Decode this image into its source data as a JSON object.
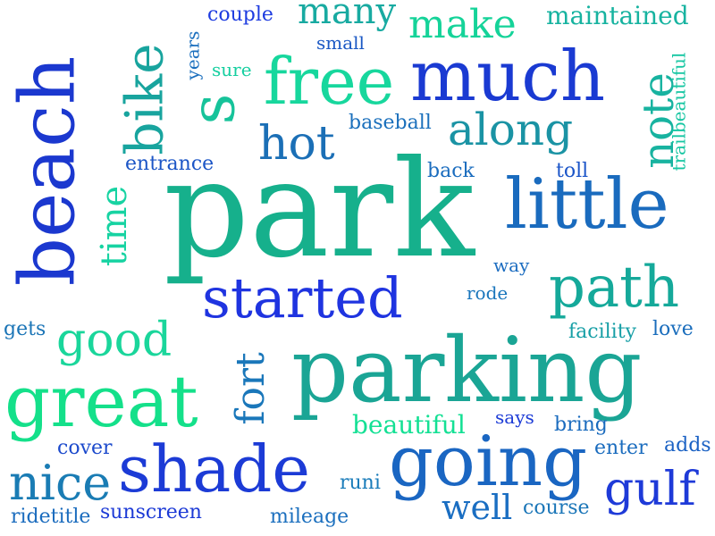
{
  "words": [
    {
      "text": "park",
      "color": "#16b08c"
    },
    {
      "text": "parking",
      "color": "#1aa595"
    },
    {
      "text": "beach",
      "color": "#1b38cf"
    },
    {
      "text": "going",
      "color": "#1a66c2"
    },
    {
      "text": "shade",
      "color": "#1c3bd6"
    },
    {
      "text": "great",
      "color": "#14e08a"
    },
    {
      "text": "little",
      "color": "#1a6bbe"
    },
    {
      "text": "much",
      "color": "#1a3ad2"
    },
    {
      "text": "free",
      "color": "#17d79d"
    },
    {
      "text": "started",
      "color": "#1f34e0"
    },
    {
      "text": "path",
      "color": "#15a99a"
    },
    {
      "text": "s",
      "color": "#16c39a"
    },
    {
      "text": "bike",
      "color": "#18a49e"
    },
    {
      "text": "good",
      "color": "#1ad69b"
    },
    {
      "text": "nice",
      "color": "#1a7cb4"
    },
    {
      "text": "gulf",
      "color": "#1e3ad8"
    },
    {
      "text": "along",
      "color": "#1a93a4"
    },
    {
      "text": "hot",
      "color": "#1b6fb6"
    },
    {
      "text": "note",
      "color": "#18b3a0"
    },
    {
      "text": "make",
      "color": "#15d399"
    },
    {
      "text": "fort",
      "color": "#1a77ba"
    },
    {
      "text": "time",
      "color": "#17d3a2"
    },
    {
      "text": "many",
      "color": "#18aaa1"
    },
    {
      "text": "well",
      "color": "#1a6ec2"
    },
    {
      "text": "maintained",
      "color": "#17b3a0"
    },
    {
      "text": "beautiful",
      "color": "#14e094"
    },
    {
      "text": "baseball",
      "color": "#1b70bc"
    },
    {
      "text": "entrance",
      "color": "#1b55c6"
    },
    {
      "text": "couple",
      "color": "#1e3ce0"
    },
    {
      "text": "years",
      "color": "#1b6fbe"
    },
    {
      "text": "small",
      "color": "#1b58c4"
    },
    {
      "text": "sure",
      "color": "#16cfa0"
    },
    {
      "text": "trailbeautiful",
      "color": "#16c6a2"
    },
    {
      "text": "back",
      "color": "#1a6cbe"
    },
    {
      "text": "toll",
      "color": "#1b55c8"
    },
    {
      "text": "way",
      "color": "#1b6cc0"
    },
    {
      "text": "rode",
      "color": "#1a76bc"
    },
    {
      "text": "facility",
      "color": "#179fa6"
    },
    {
      "text": "love",
      "color": "#1a6dbc"
    },
    {
      "text": "gets",
      "color": "#1a74b6"
    },
    {
      "text": "says",
      "color": "#1c3bd6"
    },
    {
      "text": "bring",
      "color": "#1a6bbe"
    },
    {
      "text": "cover",
      "color": "#1c4acc"
    },
    {
      "text": "enter",
      "color": "#1a6cbe"
    },
    {
      "text": "adds",
      "color": "#1b62c4"
    },
    {
      "text": "runi",
      "color": "#1a7cba"
    },
    {
      "text": "ridetitle",
      "color": "#1b6cbe"
    },
    {
      "text": "sunscreen",
      "color": "#1c3ad6"
    },
    {
      "text": "mileage",
      "color": "#1b6fbe"
    },
    {
      "text": "course",
      "color": "#1b76b8"
    }
  ]
}
